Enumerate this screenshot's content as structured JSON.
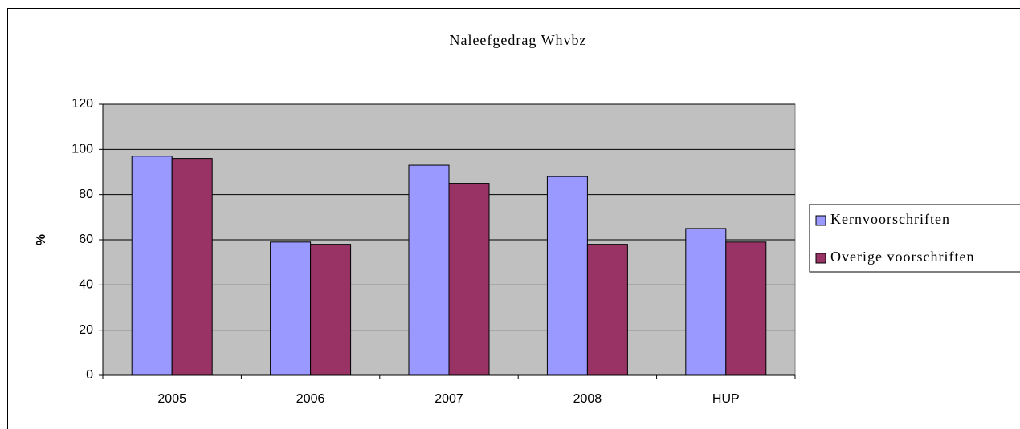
{
  "chart_data": {
    "type": "bar",
    "title": "Naleefgedrag Whvbz",
    "y_label": "%",
    "categories": [
      "2005",
      "2006",
      "2007",
      "2008",
      "HUP"
    ],
    "series": [
      {
        "name": "Kernvoorschriften",
        "color": "#9999ff",
        "values": [
          97,
          59,
          93,
          88,
          65
        ]
      },
      {
        "name": "Overige voorschriften",
        "color": "#993366",
        "values": [
          96,
          58,
          85,
          58,
          59
        ]
      }
    ],
    "ylim": [
      0,
      120
    ],
    "yticks": [
      0,
      20,
      40,
      60,
      80,
      100,
      120
    ],
    "grid": true,
    "legend": "right",
    "plot_background": "#c0c0c0"
  }
}
